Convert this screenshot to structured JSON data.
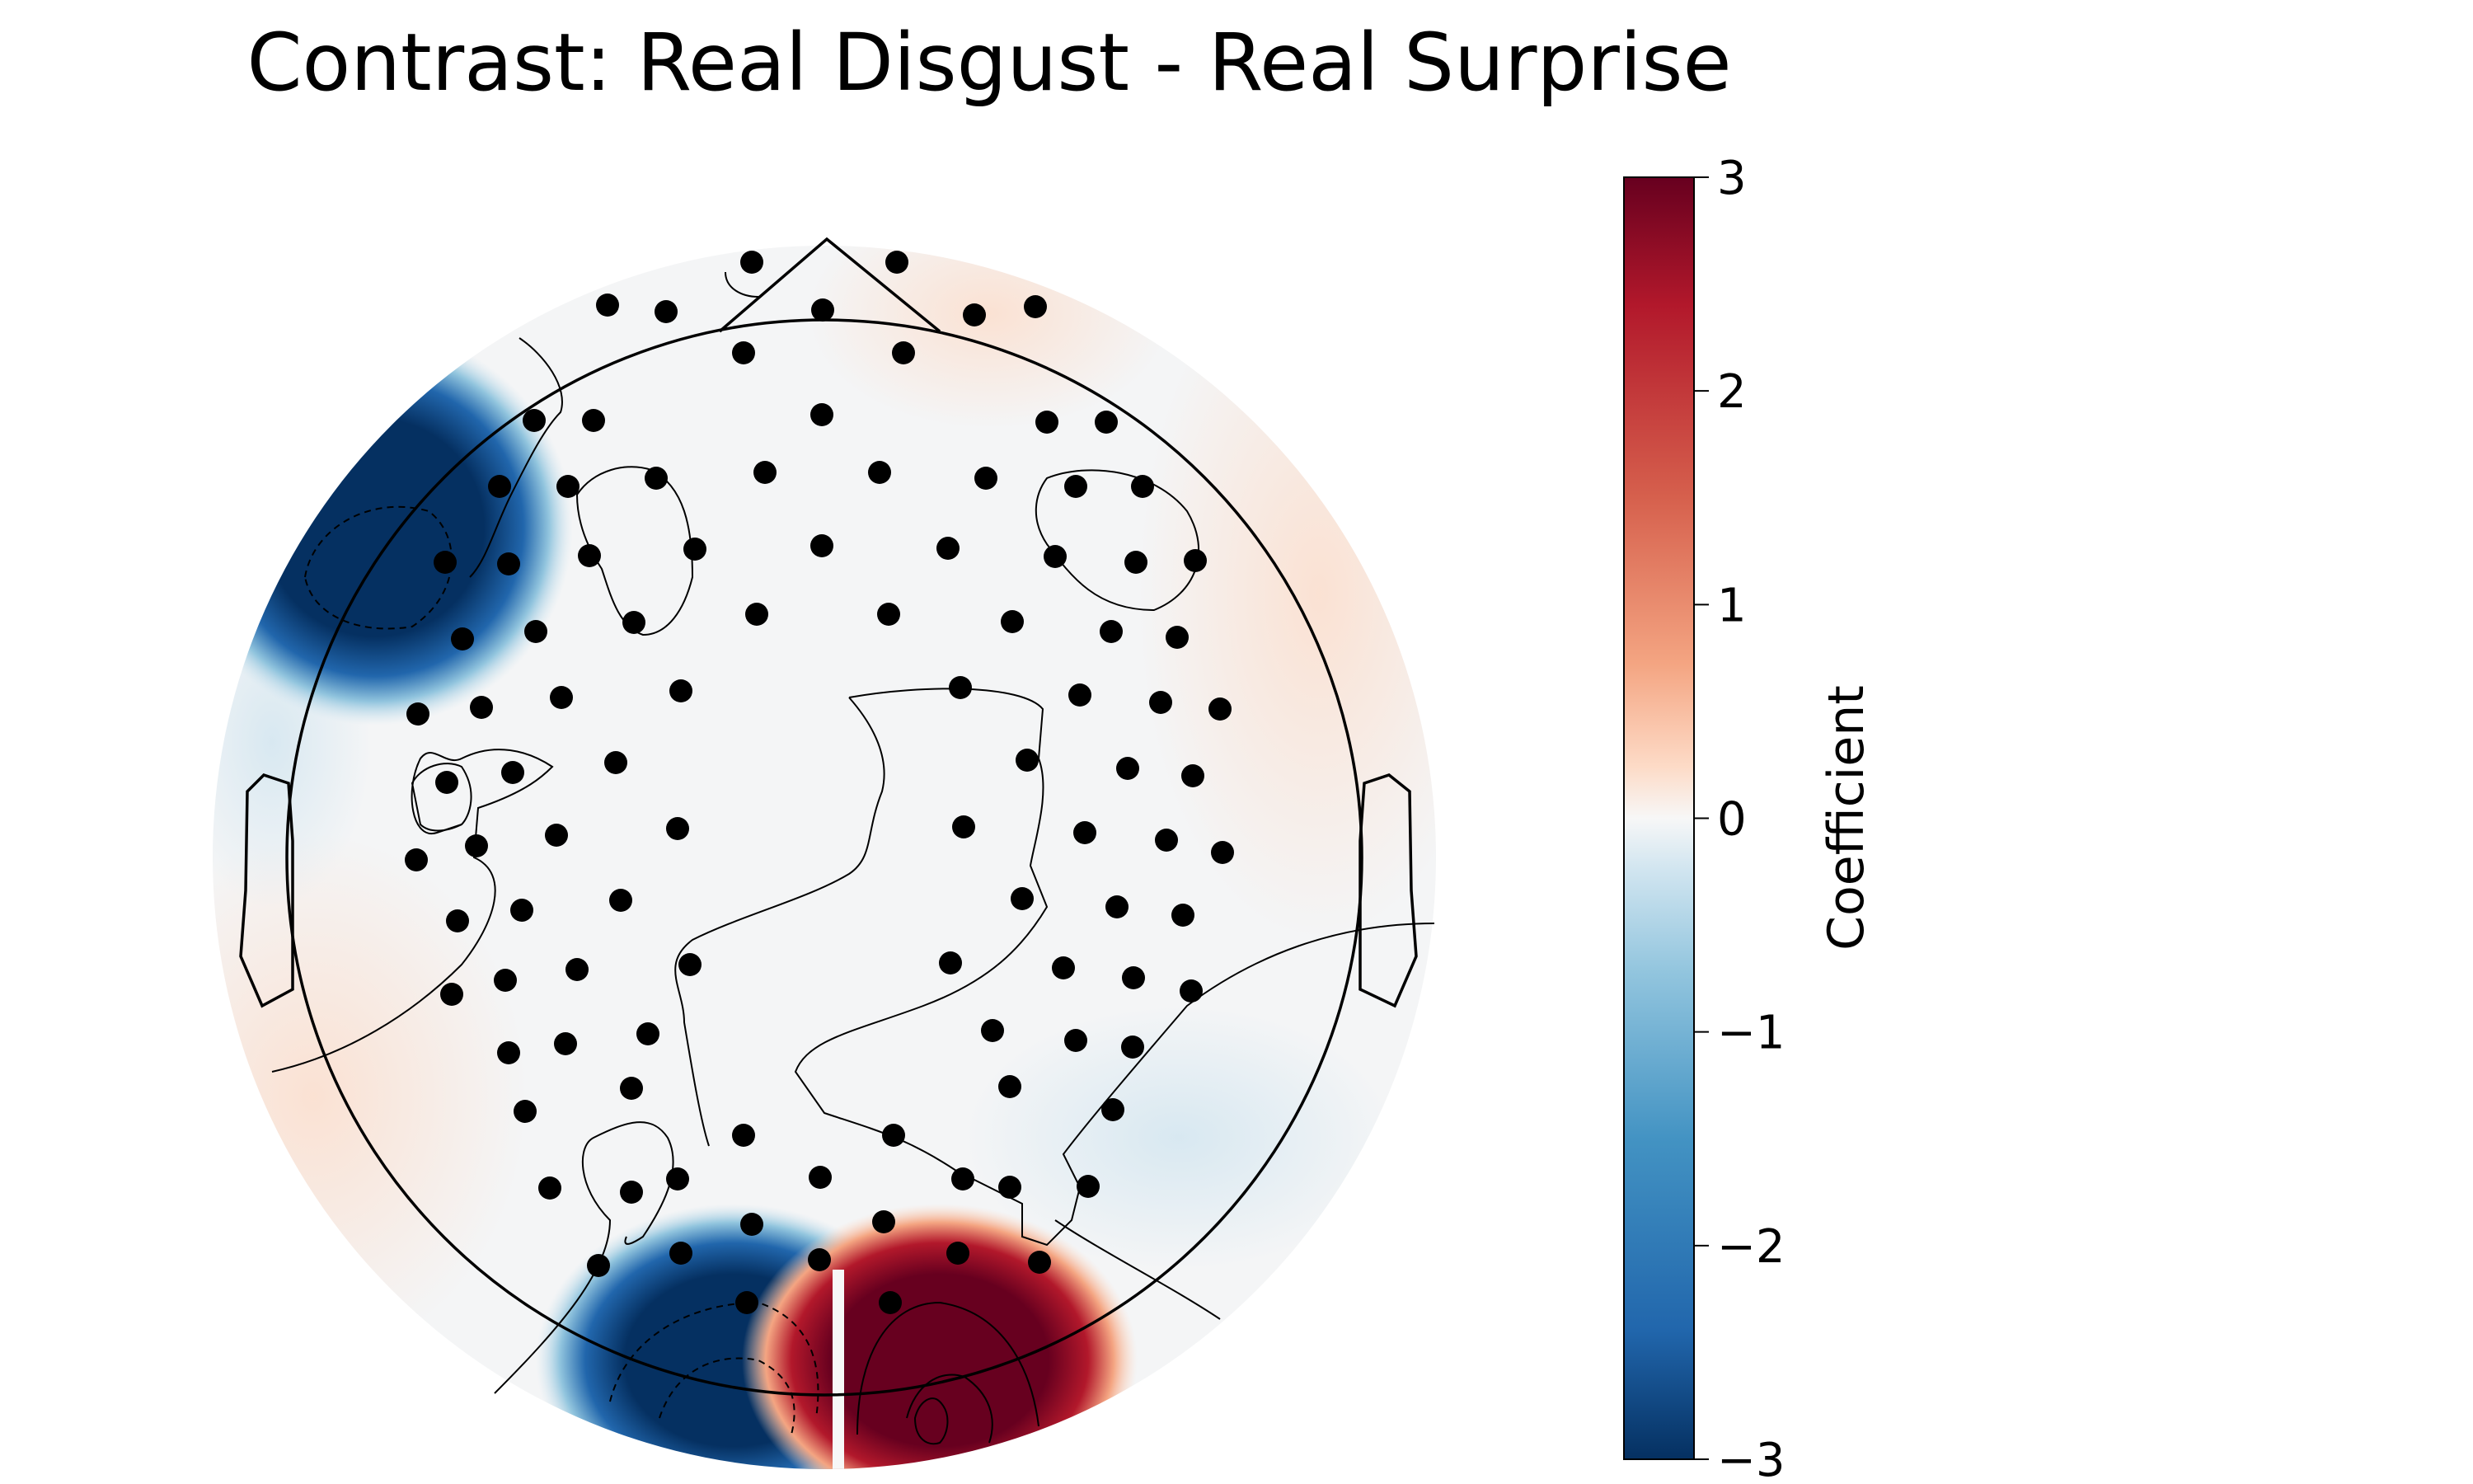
{
  "chart_data": {
    "type": "heatmap",
    "subtype": "eeg-topomap",
    "title": "Contrast: Real Disgust - Real Surprise",
    "colorbar": {
      "label": "Coefficient",
      "colormap": "RdBu_r",
      "vmin": -3,
      "vmax": 3,
      "ticks": [
        3,
        2,
        1,
        0,
        -1,
        -2,
        -3
      ],
      "tick_labels": [
        "3",
        "2",
        "1",
        "0",
        "−1",
        "−2",
        "−3"
      ]
    },
    "regions": [
      {
        "name": "left-frontal-lateral",
        "value": -3.0
      },
      {
        "name": "left-occipital",
        "value": -3.0
      },
      {
        "name": "right-occipital",
        "value": 3.0
      }
    ],
    "sensor_count": 128
  },
  "colors": {
    "negative_extreme": "#053061",
    "positive_extreme": "#67001f",
    "neutral": "#f7f7f7"
  }
}
